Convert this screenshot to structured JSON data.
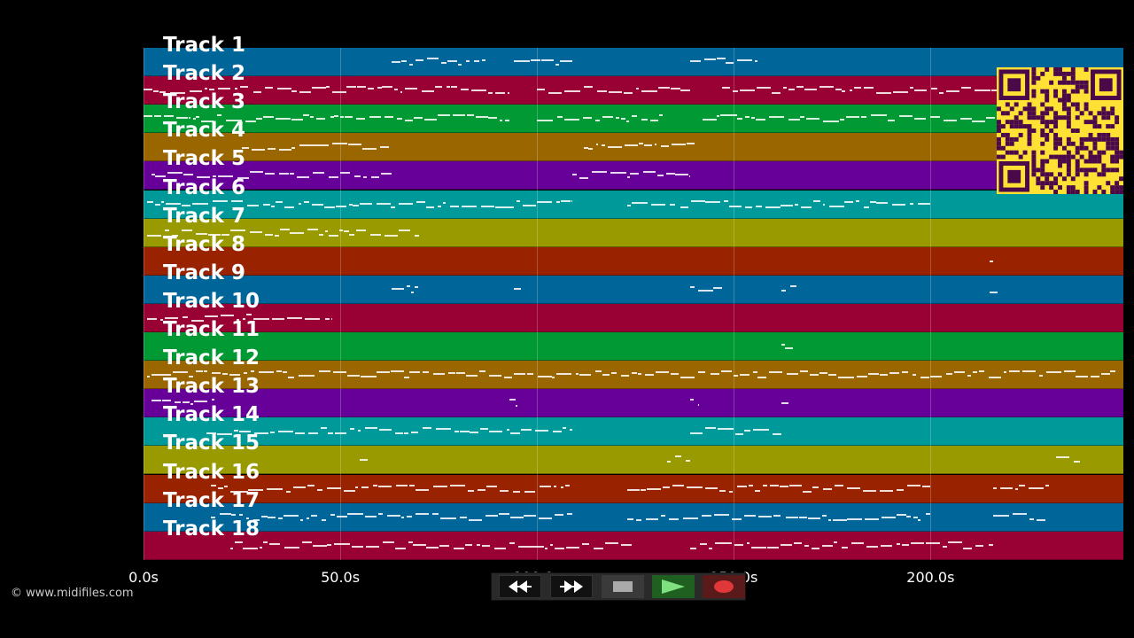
{
  "tracks": [
    {
      "name": "Track 1",
      "color": "#006699"
    },
    {
      "name": "Track 2",
      "color": "#990033"
    },
    {
      "name": "Track 3",
      "color": "#009933"
    },
    {
      "name": "Track 4",
      "color": "#996600"
    },
    {
      "name": "Track 5",
      "color": "#660099"
    },
    {
      "name": "Track 6",
      "color": "#009999"
    },
    {
      "name": "Track 7",
      "color": "#999900"
    },
    {
      "name": "Track 8",
      "color": "#992200"
    },
    {
      "name": "Track 9",
      "color": "#006699"
    },
    {
      "name": "Track 10",
      "color": "#990033"
    },
    {
      "name": "Track 11",
      "color": "#009933"
    },
    {
      "name": "Track 12",
      "color": "#996600"
    },
    {
      "name": "Track 13",
      "color": "#660099"
    },
    {
      "name": "Track 14",
      "color": "#009999"
    },
    {
      "name": "Track 15",
      "color": "#999900"
    },
    {
      "name": "Track 16",
      "color": "#992200"
    },
    {
      "name": "Track 17",
      "color": "#006699"
    },
    {
      "name": "Track 18",
      "color": "#990033"
    }
  ],
  "timeline": {
    "max_seconds": 249,
    "ticks": [
      {
        "label": "0.0s",
        "value": 0
      },
      {
        "label": "50.0s",
        "value": 50
      },
      {
        "label": "100.0s",
        "value": 100
      },
      {
        "label": "150.0s",
        "value": 150
      },
      {
        "label": "200.0s",
        "value": 200
      }
    ]
  },
  "copyright": "© www.midifiles.com",
  "qr": {
    "fg": "#4a0a4a",
    "bg": "#ffe135"
  },
  "controls": {
    "rewind_icon": "rewind-icon",
    "forward_icon": "fast-forward-icon",
    "stop_icon": "stop-icon",
    "play_icon": "play-icon",
    "record_icon": "record-icon"
  }
}
